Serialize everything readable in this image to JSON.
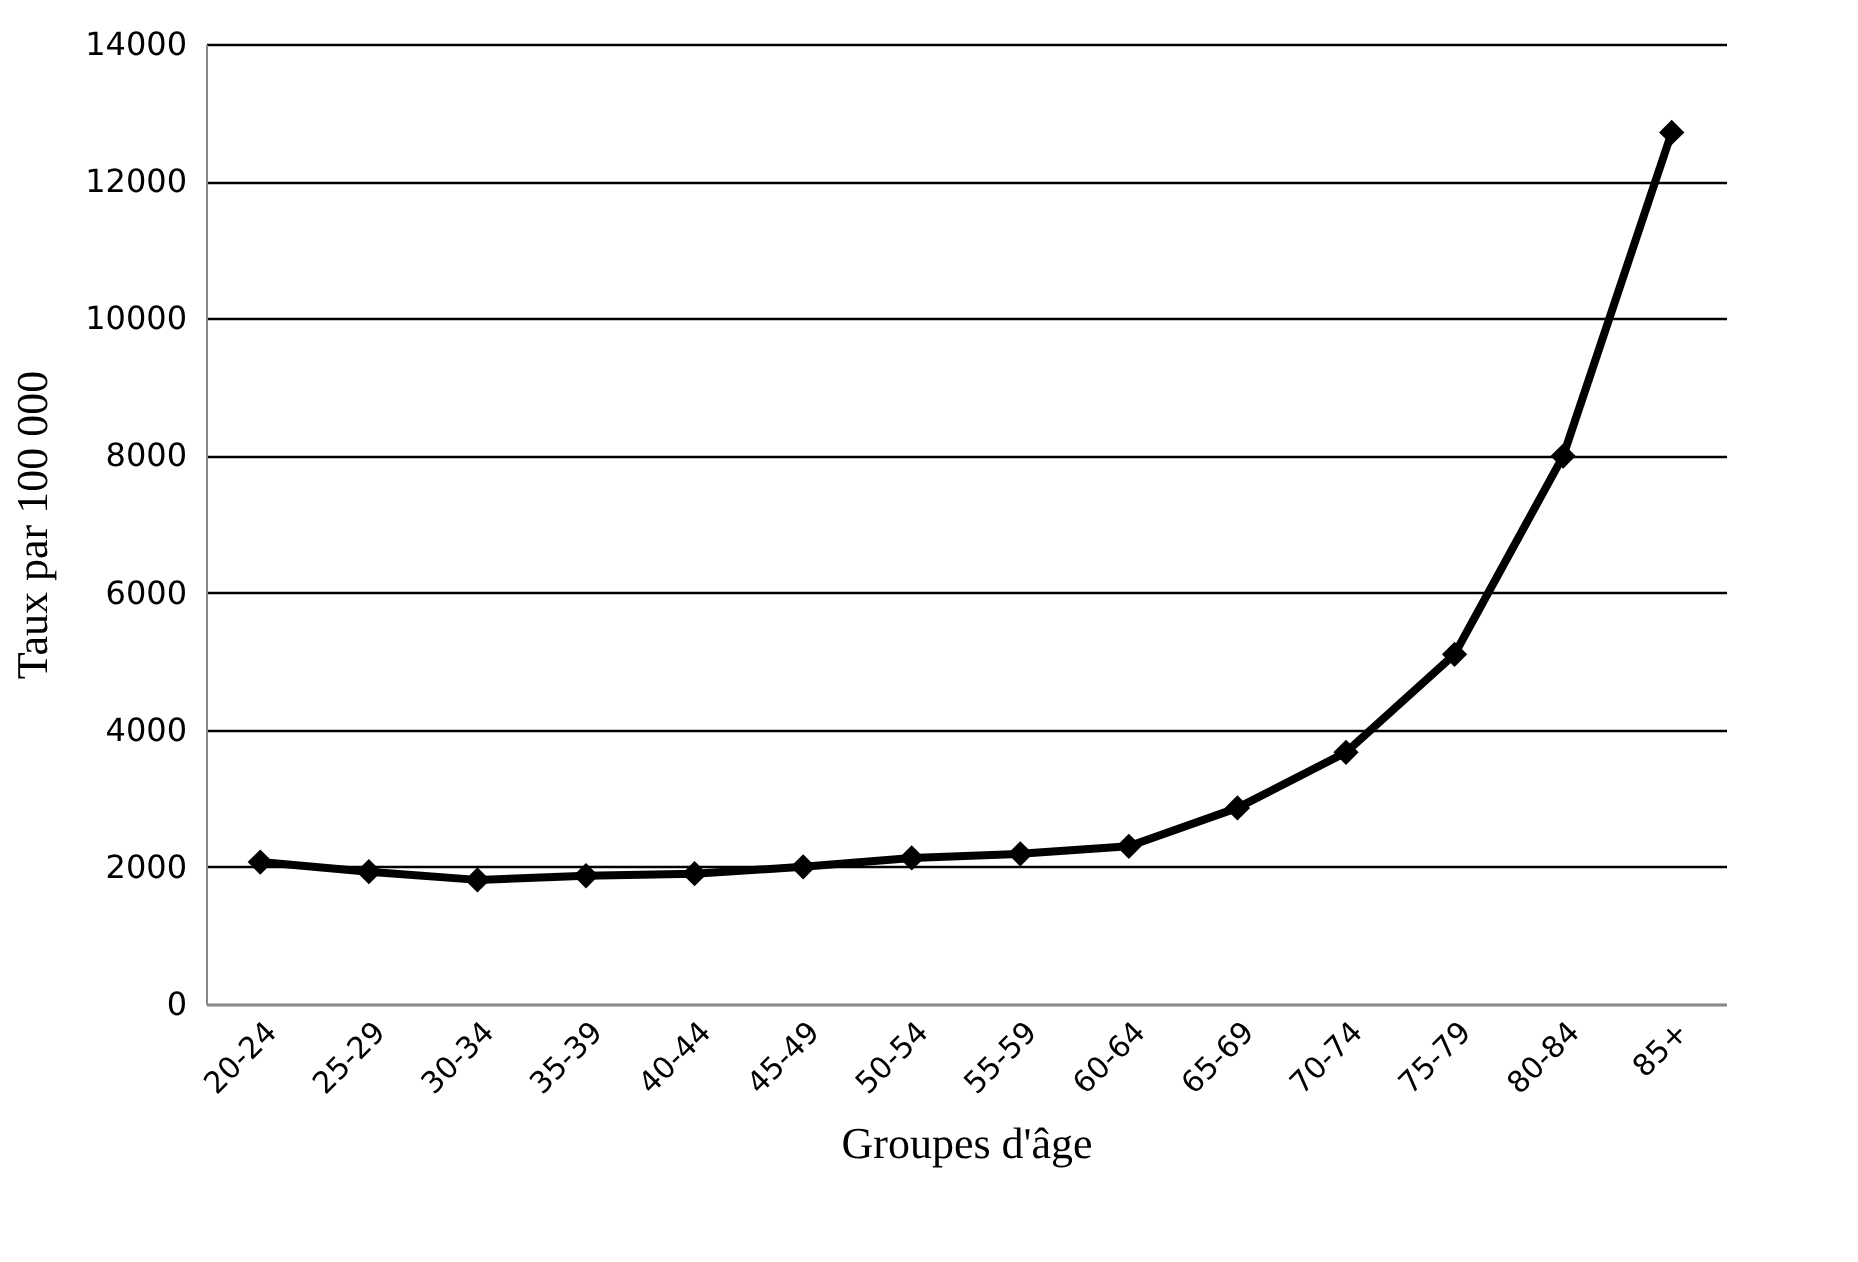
{
  "chart_data": {
    "type": "line",
    "xlabel": "Groupes d'âge",
    "ylabel": "Taux par 100 000",
    "categories": [
      "20-24",
      "25-29",
      "30-34",
      "35-39",
      "40-44",
      "45-49",
      "50-54",
      "55-59",
      "60-64",
      "65-69",
      "70-74",
      "75-79",
      "80-84",
      "85+"
    ],
    "series": [
      {
        "color": "#000000",
        "values": [
          2070,
          1930,
          1810,
          1870,
          1900,
          2000,
          2130,
          2190,
          2300,
          2860,
          3670,
          5100,
          7990,
          12710
        ]
      }
    ],
    "ylim": [
      0,
      14000
    ],
    "yticks": [
      0,
      2000,
      4000,
      6000,
      8000,
      10000,
      12000,
      14000
    ],
    "grid": "y",
    "marker": "diamond",
    "line_style": "solid"
  }
}
